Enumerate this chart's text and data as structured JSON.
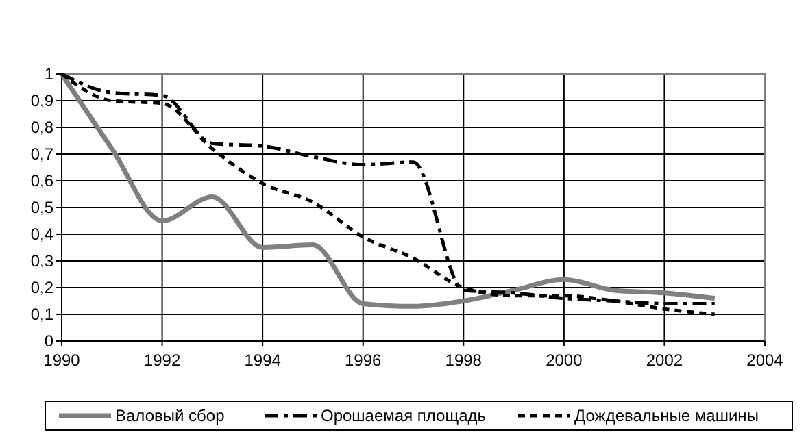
{
  "chart_data": {
    "type": "line",
    "x": [
      1990,
      1991,
      1992,
      1993,
      1994,
      1995,
      1996,
      1997,
      1998,
      1999,
      2000,
      2001,
      2002,
      2003
    ],
    "series": [
      {
        "name": "Валовый сбор",
        "color": "#808080",
        "line_style": "solid",
        "values": [
          1,
          0.72,
          0.45,
          0.54,
          0.35,
          0.36,
          0.14,
          0.13,
          0.15,
          0.19,
          0.23,
          0.19,
          0.18,
          0.16
        ]
      },
      {
        "name": "Орошаемая площадь",
        "color": "#000000",
        "line_style": "dashdot",
        "values": [
          1,
          0.93,
          0.92,
          0.74,
          0.73,
          0.69,
          0.66,
          0.67,
          0.19,
          0.18,
          0.16,
          0.15,
          0.14,
          0.14
        ]
      },
      {
        "name": "Дождевальные машины",
        "color": "#000000",
        "line_style": "dashed",
        "values": [
          1,
          0.9,
          0.89,
          0.72,
          0.59,
          0.52,
          0.39,
          0.31,
          0.2,
          0.17,
          0.17,
          0.15,
          0.12,
          0.1
        ]
      }
    ],
    "xlim": [
      1990,
      2004
    ],
    "xticks": [
      1990,
      1992,
      1994,
      1996,
      1998,
      2000,
      2002,
      2004
    ],
    "ylim": [
      0,
      1
    ],
    "yticks": [
      0,
      {
        "value": 0.1,
        "label": "0,1"
      },
      {
        "value": 0.2,
        "label": "0,2"
      },
      {
        "value": 0.3,
        "label": "0,3"
      },
      {
        "value": 0.4,
        "label": "0,4"
      },
      {
        "value": 0.5,
        "label": "0,5"
      },
      {
        "value": 0.6,
        "label": "0,6"
      },
      {
        "value": 0.7,
        "label": "0,7"
      },
      {
        "value": 0.8,
        "label": "0,8"
      },
      {
        "value": 0.9,
        "label": "0,9"
      },
      1
    ],
    "grid": true,
    "legend": "bottom",
    "marker": "none"
  }
}
